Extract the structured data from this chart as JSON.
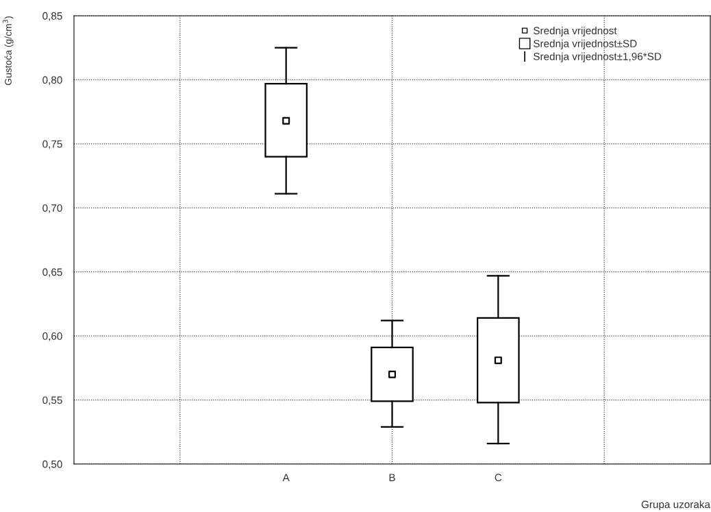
{
  "chart_data": {
    "type": "box",
    "categories": [
      null,
      "A",
      "B",
      "C",
      null
    ],
    "boxes": [
      null,
      {
        "low": 0.711,
        "q1": 0.74,
        "mean": 0.768,
        "q3": 0.797,
        "high": 0.825
      },
      {
        "low": 0.529,
        "q1": 0.549,
        "mean": 0.57,
        "q3": 0.591,
        "high": 0.612
      },
      {
        "low": 0.516,
        "q1": 0.548,
        "mean": 0.581,
        "q3": 0.614,
        "high": 0.647
      },
      null
    ],
    "color": "#000000",
    "xlabel": "Grupa uzoraka",
    "ylabel": "Gustoća (g/cm$^{3}$)",
    "ylim": [
      0.5,
      0.85
    ],
    "yticks": [
      {
        "value": 0.5,
        "label": "0,50"
      },
      {
        "value": 0.55,
        "label": "0,55"
      },
      {
        "value": 0.6,
        "label": "0,60"
      },
      {
        "value": 0.65,
        "label": "0,65"
      },
      {
        "value": 0.7,
        "label": "0,70"
      },
      {
        "value": 0.75,
        "label": "0,75"
      },
      {
        "value": 0.8,
        "label": "0,80"
      },
      {
        "value": 0.85,
        "label": "0,85"
      }
    ],
    "grid": true,
    "annotations": [
      "Srednja vrijednost",
      "Srednja vrijednost±SD",
      "Srednja vrijednost±1,96*SD"
    ]
  }
}
